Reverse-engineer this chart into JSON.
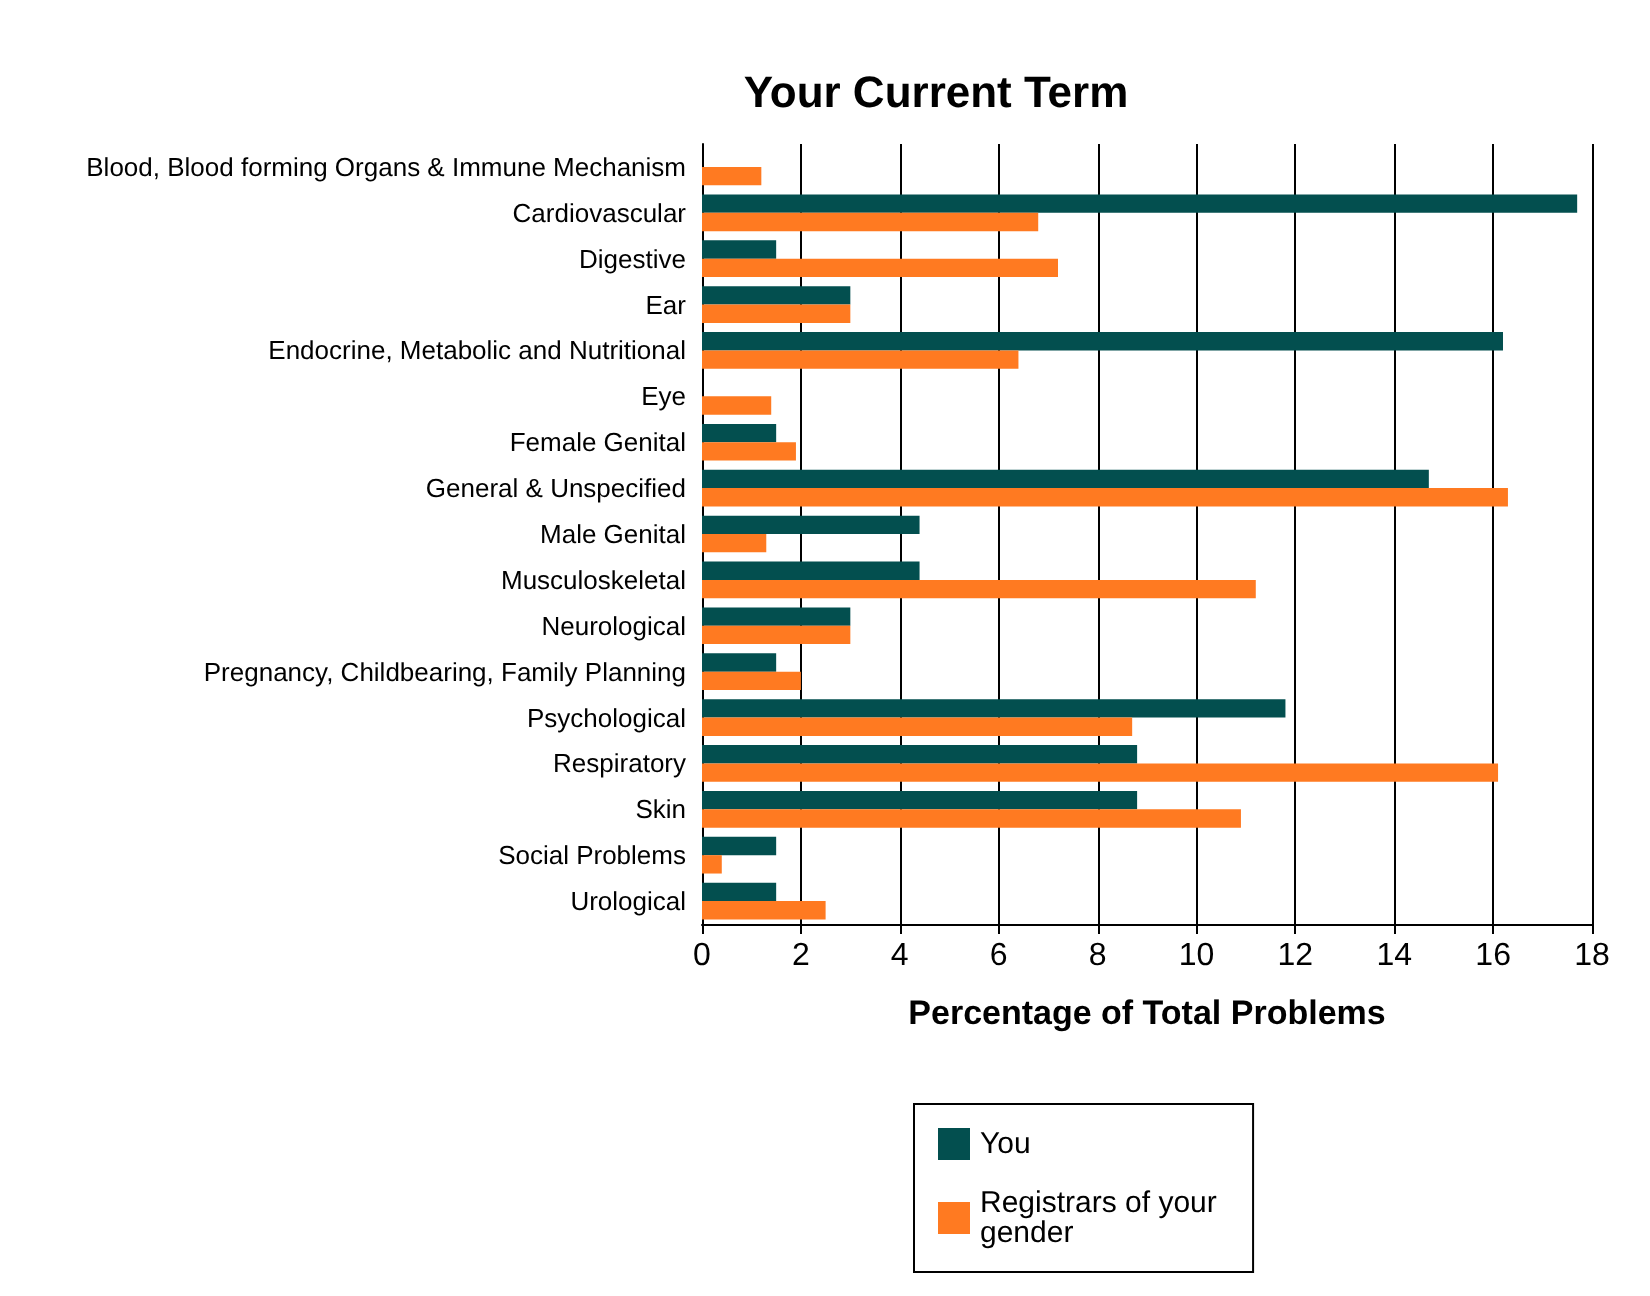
{
  "chart_data": {
    "type": "bar",
    "orientation": "horizontal",
    "title": "Your Current Term",
    "xlabel": "Percentage of Total Problems",
    "categories": [
      "Blood, Blood forming Organs & Immune Mechanism",
      "Cardiovascular",
      "Digestive",
      "Ear",
      "Endocrine, Metabolic and Nutritional",
      "Eye",
      "Female Genital",
      "General & Unspecified",
      "Male Genital",
      "Musculoskeletal",
      "Neurological",
      "Pregnancy, Childbearing, Family Planning",
      "Psychological",
      "Respiratory",
      "Skin",
      "Social Problems",
      "Urological"
    ],
    "series": [
      {
        "name": "You",
        "color": "#034f4f",
        "values": [
          null,
          17.7,
          1.5,
          3.0,
          16.2,
          null,
          1.5,
          14.7,
          4.4,
          4.4,
          3.0,
          1.5,
          11.8,
          8.8,
          8.8,
          1.5,
          1.5
        ]
      },
      {
        "name": "Registrars of your gender",
        "color": "#ff7a21",
        "values": [
          1.2,
          6.8,
          7.2,
          3.0,
          6.4,
          1.4,
          1.9,
          16.3,
          1.3,
          11.2,
          3.0,
          2.0,
          8.7,
          16.1,
          10.9,
          0.4,
          2.5
        ]
      }
    ],
    "xlim": [
      0,
      18
    ],
    "xticks": [
      0,
      2,
      4,
      6,
      8,
      10,
      12,
      14,
      16,
      18
    ],
    "grid": "x",
    "legend": "bottom"
  }
}
